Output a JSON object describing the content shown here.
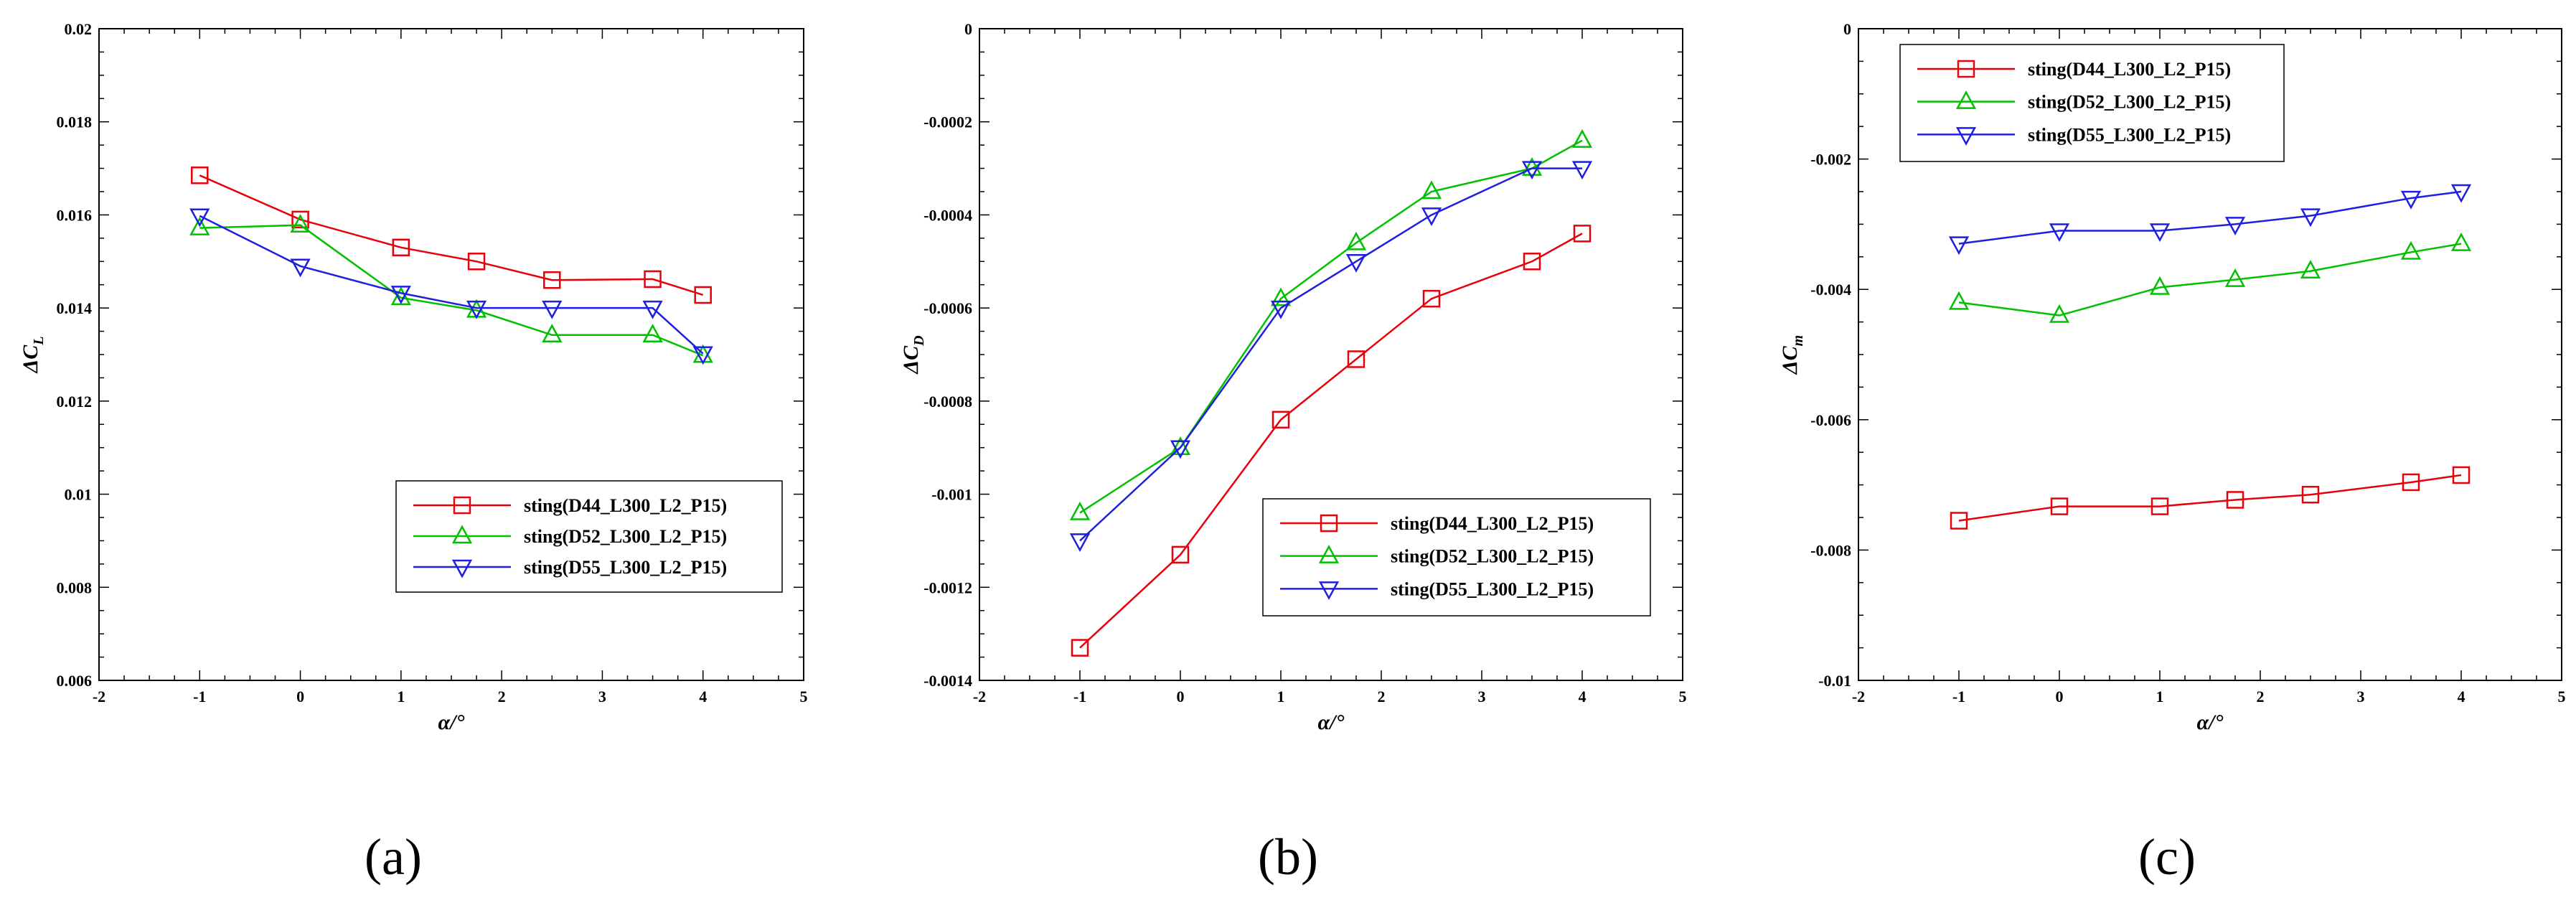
{
  "figure": {
    "panel_labels": [
      "(a)",
      "(b)",
      "(c)"
    ],
    "series_styles": [
      {
        "name": "sting(D44_L300_L2_P15)",
        "color": "#e8000b",
        "marker": "square"
      },
      {
        "name": "sting(D52_L300_L2_P15)",
        "color": "#00c000",
        "marker": "triangle-up"
      },
      {
        "name": "sting(D55_L300_L2_P15)",
        "color": "#1f1fe0",
        "marker": "triangle-down"
      }
    ]
  },
  "chart_data": [
    {
      "type": "line",
      "panel": "(a)",
      "xlabel": "α/°",
      "ylabel_main": "ΔC",
      "ylabel_sub": "L",
      "xlim": [
        -2,
        5
      ],
      "ylim": [
        0.006,
        0.02
      ],
      "xticks": [
        -2,
        -1,
        0,
        1,
        2,
        3,
        4,
        5
      ],
      "xtick_labels": [
        "-2",
        "-1",
        "0",
        "1",
        "2",
        "3",
        "4",
        "5"
      ],
      "yticks": [
        0.006,
        0.008,
        0.01,
        0.012,
        0.014,
        0.016,
        0.018,
        0.02
      ],
      "ytick_labels": [
        "0.006",
        "0.008",
        "0.01",
        "0.012",
        "0.014",
        "0.016",
        "0.018",
        "0.02"
      ],
      "legend_position": "lower-right",
      "x": [
        -1,
        0,
        1,
        1.75,
        2.5,
        3.5,
        4
      ],
      "series": [
        {
          "name": "sting(D44_L300_L2_P15)",
          "values": [
            0.01685,
            0.0159,
            0.0153,
            0.015,
            0.0146,
            0.01462,
            0.01428
          ]
        },
        {
          "name": "sting(D52_L300_L2_P15)",
          "values": [
            0.01572,
            0.01578,
            0.01422,
            0.01395,
            0.01342,
            0.01342,
            0.01298
          ]
        },
        {
          "name": "sting(D55_L300_L2_P15)",
          "values": [
            0.01598,
            0.0149,
            0.01432,
            0.014,
            0.014,
            0.014,
            0.01302
          ]
        }
      ]
    },
    {
      "type": "line",
      "panel": "(b)",
      "xlabel": "α/°",
      "ylabel_main": "ΔC",
      "ylabel_sub": "D",
      "xlim": [
        -2,
        5
      ],
      "ylim": [
        -0.0014,
        0
      ],
      "xticks": [
        -2,
        -1,
        0,
        1,
        2,
        3,
        4,
        5
      ],
      "xtick_labels": [
        "-2",
        "-1",
        "0",
        "1",
        "2",
        "3",
        "4",
        "5"
      ],
      "yticks": [
        -0.0014,
        -0.0012,
        -0.001,
        -0.0008,
        -0.0006,
        -0.0004,
        -0.0002,
        0
      ],
      "ytick_labels": [
        "-0.0014",
        "-0.0012",
        "-0.001",
        "-0.0008",
        "-0.0006",
        "-0.0004",
        "-0.0002",
        "0"
      ],
      "legend_position": "lower-right",
      "x": [
        -1,
        0,
        1,
        1.75,
        2.5,
        3.5,
        4
      ],
      "series": [
        {
          "name": "sting(D44_L300_L2_P15)",
          "values": [
            -0.00133,
            -0.00113,
            -0.00084,
            -0.00071,
            -0.00058,
            -0.0005,
            -0.00044
          ]
        },
        {
          "name": "sting(D52_L300_L2_P15)",
          "values": [
            -0.00104,
            -0.0009,
            -0.00058,
            -0.00046,
            -0.00035,
            -0.0003,
            -0.00024
          ]
        },
        {
          "name": "sting(D55_L300_L2_P15)",
          "values": [
            -0.0011,
            -0.0009,
            -0.0006,
            -0.0005,
            -0.0004,
            -0.0003,
            -0.0003
          ]
        }
      ]
    },
    {
      "type": "line",
      "panel": "(c)",
      "xlabel": "α/°",
      "ylabel_main": "ΔC",
      "ylabel_sub": "m",
      "xlim": [
        -2,
        5
      ],
      "ylim": [
        -0.01,
        0
      ],
      "xticks": [
        -2,
        -1,
        0,
        1,
        2,
        3,
        4,
        5
      ],
      "xtick_labels": [
        "-2",
        "-1",
        "0",
        "1",
        "2",
        "3",
        "4",
        "5"
      ],
      "yticks": [
        -0.01,
        -0.008,
        -0.006,
        -0.004,
        -0.002,
        0
      ],
      "ytick_labels": [
        "-0.01",
        "-0.008",
        "-0.006",
        "-0.004",
        "-0.002",
        "0"
      ],
      "legend_position": "top-left",
      "x": [
        -1,
        0,
        1,
        1.75,
        2.5,
        3.5,
        4
      ],
      "series": [
        {
          "name": "sting(D44_L300_L2_P15)",
          "values": [
            -0.00755,
            -0.00733,
            -0.00733,
            -0.00723,
            -0.00715,
            -0.00696,
            -0.00685
          ]
        },
        {
          "name": "sting(D52_L300_L2_P15)",
          "values": [
            -0.0042,
            -0.0044,
            -0.00397,
            -0.00385,
            -0.00372,
            -0.00343,
            -0.0033
          ]
        },
        {
          "name": "sting(D55_L300_L2_P15)",
          "values": [
            -0.0033,
            -0.0031,
            -0.0031,
            -0.003,
            -0.00287,
            -0.0026,
            -0.0025
          ]
        }
      ]
    }
  ]
}
